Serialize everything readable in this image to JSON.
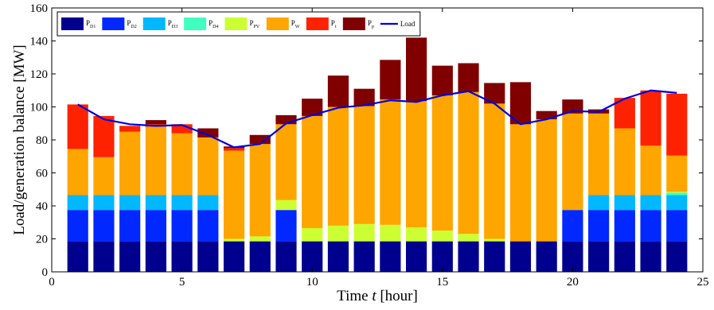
{
  "chart_data": {
    "type": "bar",
    "stacked": true,
    "xlabel": {
      "prefix": "Time  ",
      "italic": "t",
      "suffix": " [hour]"
    },
    "ylabel": "Load/generation balance [MW]",
    "xlim": [
      0,
      25
    ],
    "ylim": [
      0,
      160
    ],
    "xticks": [
      0,
      5,
      10,
      15,
      20,
      25
    ],
    "yticks": [
      0,
      20,
      40,
      60,
      80,
      100,
      120,
      140,
      160
    ],
    "grid": false,
    "legend_position": "top-left",
    "x": [
      1,
      2,
      3,
      4,
      5,
      6,
      7,
      8,
      9,
      10,
      11,
      12,
      13,
      14,
      15,
      16,
      17,
      18,
      19,
      20,
      21,
      22,
      23,
      24
    ],
    "series": [
      {
        "name": "P",
        "sub": "D1",
        "color": "#00008f",
        "values": [
          18.5,
          18.5,
          18.5,
          18.5,
          18.5,
          18.5,
          18.5,
          18.5,
          18.5,
          18.5,
          18.5,
          18.5,
          18.5,
          18.5,
          18.5,
          18.5,
          18.5,
          18.5,
          18.5,
          18.5,
          18.5,
          18.5,
          18.5,
          18.5
        ]
      },
      {
        "name": "P",
        "sub": "D2",
        "color": "#0028ff",
        "values": [
          19,
          19,
          19,
          19,
          19,
          19,
          0,
          0,
          19,
          0,
          0,
          0,
          0,
          0,
          0,
          0,
          0,
          0,
          0,
          19,
          19,
          19,
          19,
          19
        ]
      },
      {
        "name": "P",
        "sub": "D3",
        "color": "#00b8ff",
        "values": [
          9,
          9,
          9,
          9,
          9,
          9,
          0,
          0,
          0,
          0,
          0,
          0,
          0,
          0,
          0,
          0,
          0,
          0,
          0,
          0,
          9,
          9,
          9,
          9
        ]
      },
      {
        "name": "P",
        "sub": "D4",
        "color": "#40ffbf",
        "values": [
          0,
          0,
          0,
          0,
          0,
          0,
          0,
          0,
          0,
          0,
          0,
          0,
          0,
          0,
          0,
          0,
          0,
          0,
          0,
          0,
          0,
          0,
          0,
          1.5
        ]
      },
      {
        "name": "P",
        "sub": "PV",
        "color": "#ccff33",
        "values": [
          0,
          0,
          0,
          0,
          0,
          0,
          1.5,
          3,
          6,
          8,
          9.5,
          10.5,
          10,
          8.5,
          6.5,
          4.5,
          1.5,
          0,
          0,
          0,
          0,
          0,
          0,
          0.5
        ]
      },
      {
        "name": "P",
        "sub": "W",
        "color": "#ffa500",
        "values": [
          28,
          23,
          38.5,
          41.5,
          37.5,
          35,
          53.5,
          56,
          46,
          68,
          72,
          71.5,
          76,
          76.5,
          82,
          86,
          82,
          71,
          74,
          58.5,
          49.5,
          40.5,
          30,
          22
        ]
      },
      {
        "name": "P",
        "sub": "t",
        "color": "#ff2200",
        "values": [
          27,
          25,
          3.5,
          1.5,
          5.5,
          0,
          1.5,
          0,
          0,
          0,
          0,
          0,
          0,
          0,
          0,
          0,
          0,
          0,
          0,
          0,
          0,
          18.5,
          33.5,
          37.5
        ]
      },
      {
        "name": "P",
        "sub": "p",
        "color": "#800000",
        "values": [
          0,
          0,
          0,
          2.5,
          0,
          5.5,
          1,
          5.5,
          5.5,
          10.5,
          19,
          10.5,
          24,
          38.5,
          18,
          17.5,
          12.5,
          25.5,
          5,
          8.5,
          2.5,
          0,
          0,
          0
        ]
      }
    ],
    "load": {
      "name": "Load",
      "color": "#0000dd",
      "values": [
        101.5,
        92.5,
        89.5,
        88.5,
        89,
        83,
        75.5,
        77.5,
        90,
        95,
        99.5,
        101,
        104,
        103,
        107,
        109.5,
        102,
        89.5,
        92.5,
        97.5,
        97,
        105,
        110,
        108.5
      ]
    }
  }
}
